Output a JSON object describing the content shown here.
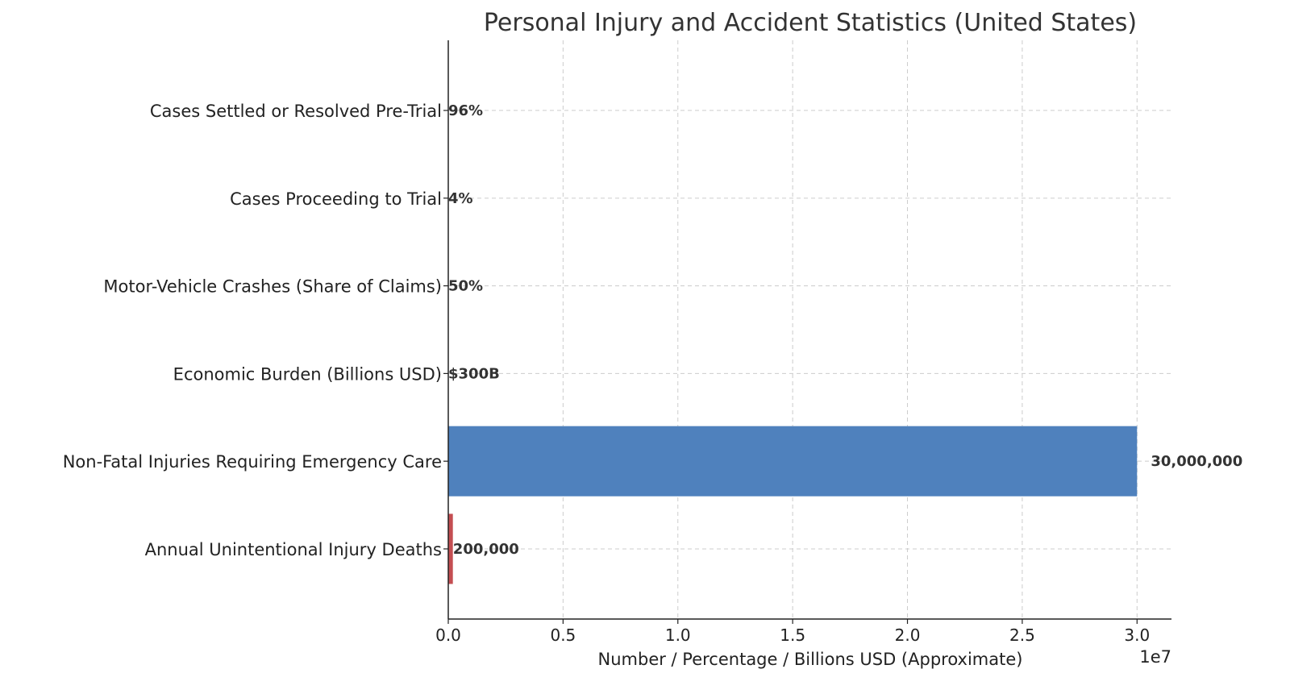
{
  "chart_data": {
    "type": "bar",
    "orientation": "horizontal",
    "title": "Personal Injury and Accident Statistics (United States)",
    "xlabel": "Number / Percentage / Billions USD (Approximate)",
    "ylabel": "",
    "x_offset_label": "1e7",
    "xlim": [
      0,
      31500000
    ],
    "xticks": [
      0,
      5000000,
      10000000,
      15000000,
      20000000,
      25000000,
      30000000
    ],
    "xtick_labels": [
      "0.0",
      "0.5",
      "1.0",
      "1.5",
      "2.0",
      "2.5",
      "3.0"
    ],
    "grid": true,
    "categories": [
      "Annual Unintentional Injury Deaths",
      "Non-Fatal Injuries Requiring Emergency Care",
      "Economic Burden (Billions USD)",
      "Motor-Vehicle Crashes (Share of Claims)",
      "Cases Proceeding to Trial",
      "Cases Settled or Resolved Pre-Trial"
    ],
    "values": [
      200000,
      30000000,
      300,
      50,
      4,
      96
    ],
    "data_labels": [
      "200,000",
      "30,000,000",
      "$300B",
      "50%",
      "4%",
      "96%"
    ],
    "colors": [
      "#c44e52",
      "#4f81bd",
      "#55a868",
      "#8172b2",
      "#ccb974",
      "#64b5cd"
    ]
  }
}
